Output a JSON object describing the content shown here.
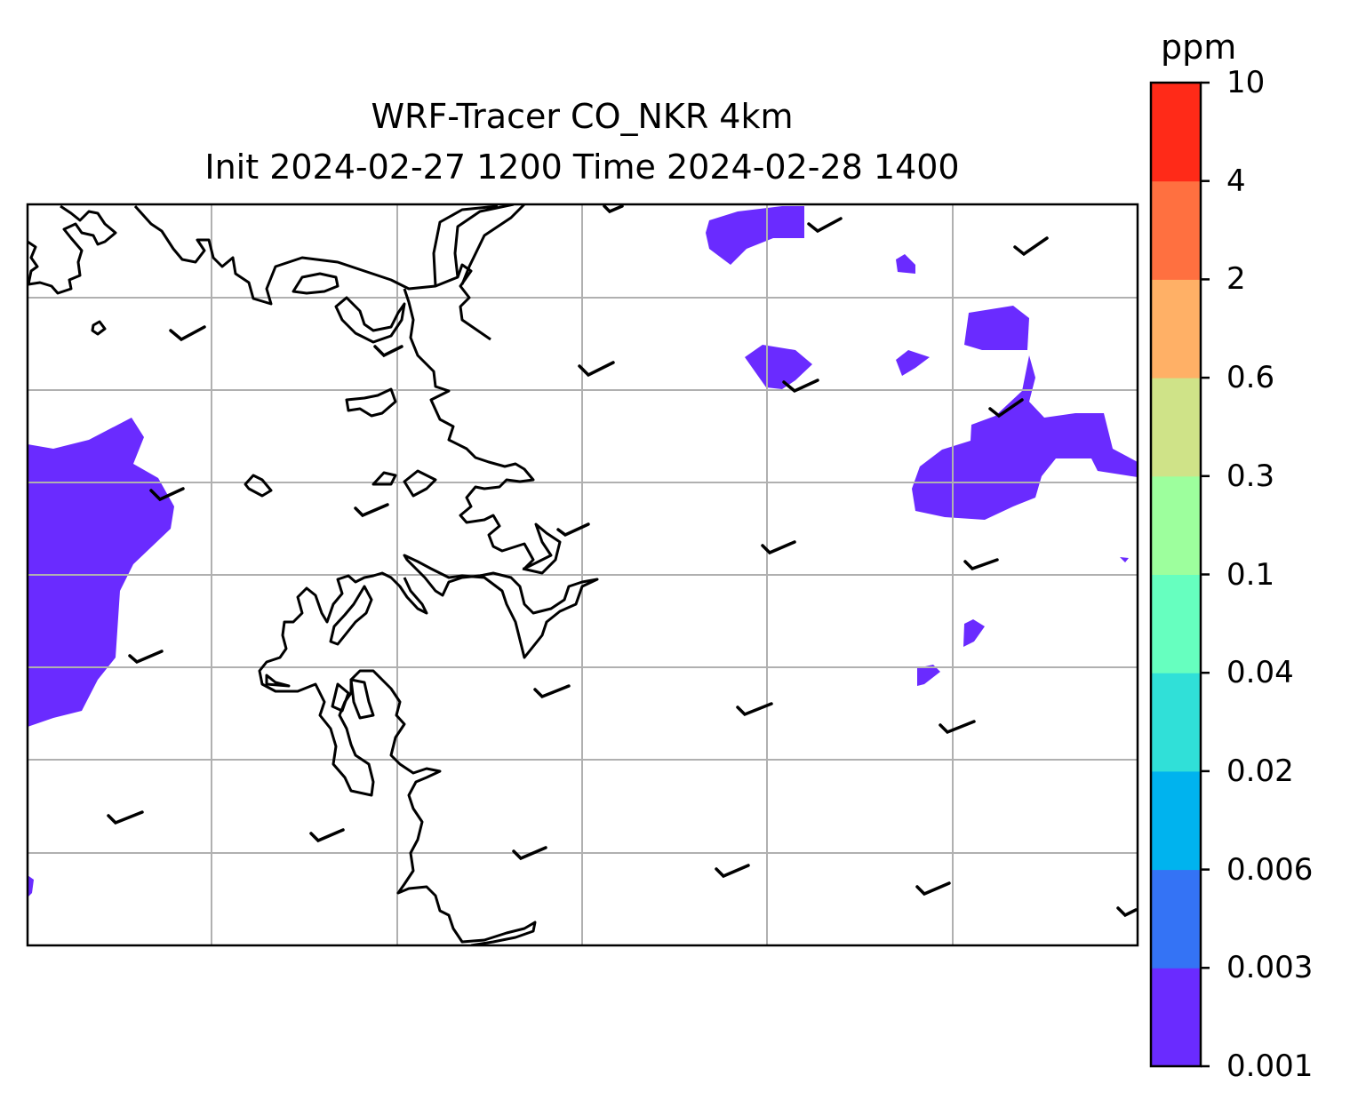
{
  "title": {
    "line1": "WRF-Tracer CO_NKR 4km",
    "line2": "Init 2024-02-27 1200 Time 2024-02-28 1400"
  },
  "colorbar": {
    "unit": "ppm",
    "levels": [
      "0.001",
      "0.003",
      "0.006",
      "0.02",
      "0.04",
      "0.1",
      "0.3",
      "0.6",
      "2",
      "4",
      "10"
    ],
    "colors": [
      "#6a2bff",
      "#3473f5",
      "#00b3ee",
      "#30e0d8",
      "#66ffbf",
      "#9dff9d",
      "#cfe388",
      "#ffb066",
      "#ff7040",
      "#ff2a18"
    ]
  },
  "map": {
    "layer": "CO tracer concentration with wind barbs",
    "filled_color": "#6a2bff",
    "gridline_color": "#b0b0b0",
    "coastline_color": "#000000"
  }
}
